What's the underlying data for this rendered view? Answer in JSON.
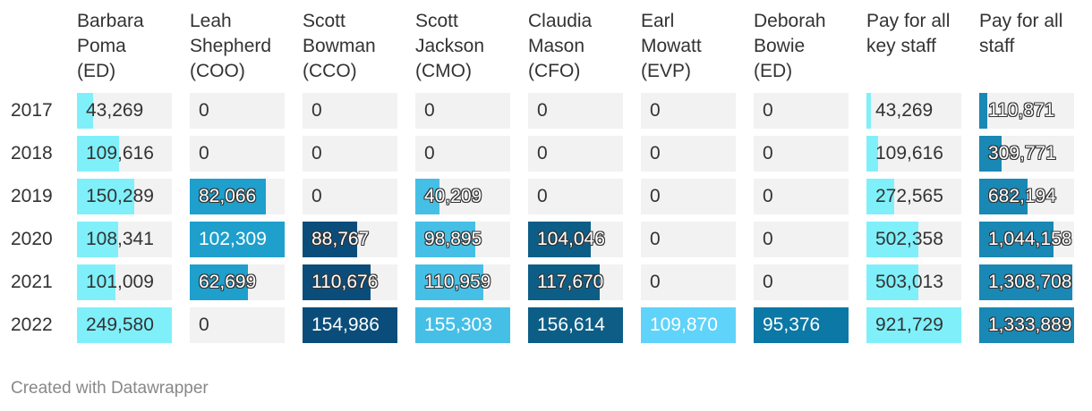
{
  "chart_data": {
    "type": "table",
    "title": "",
    "columns": [
      {
        "name": "Barbara\nPoma\n(ED)",
        "color": "#7ff0fa"
      },
      {
        "name": "Leah\nShepherd\n(COO)",
        "color": "#1e9fcc"
      },
      {
        "name": "Scott\nBowman\n(CCO)",
        "color": "#0b4d7a"
      },
      {
        "name": "Scott\nJackson\n(CMO)",
        "color": "#45bfe6"
      },
      {
        "name": "Claudia\nMason\n(CFO)",
        "color": "#0d5e86"
      },
      {
        "name": "Earl\nMowatt\n(EVP)",
        "color": "#5fd3fa"
      },
      {
        "name": "Deborah\nBowie\n(ED)",
        "color": "#0b78a6"
      },
      {
        "name": "Pay for all\nkey staff",
        "color": "#7ff0fa"
      },
      {
        "name": "Pay for all\nstaff",
        "color": "#1a88b4"
      }
    ],
    "rows": [
      "2017",
      "2018",
      "2019",
      "2020",
      "2021",
      "2022"
    ],
    "values": [
      [
        43269,
        0,
        0,
        0,
        0,
        0,
        0,
        43269,
        110871
      ],
      [
        109616,
        0,
        0,
        0,
        0,
        0,
        0,
        109616,
        309771
      ],
      [
        150289,
        82066,
        0,
        40209,
        0,
        0,
        0,
        272565,
        682194
      ],
      [
        108341,
        102309,
        88767,
        98895,
        104046,
        0,
        0,
        502358,
        1044158
      ],
      [
        101009,
        62699,
        110676,
        110959,
        117670,
        0,
        0,
        503013,
        1308708
      ],
      [
        249580,
        0,
        154986,
        155303,
        156614,
        109870,
        95376,
        921729,
        1333889
      ]
    ],
    "labels": [
      [
        "43,269",
        "0",
        "0",
        "0",
        "0",
        "0",
        "0",
        "43,269",
        "110,871"
      ],
      [
        "109,616",
        "0",
        "0",
        "0",
        "0",
        "0",
        "0",
        "109,616",
        "309,771"
      ],
      [
        "150,289",
        "82,066",
        "0",
        "40,209",
        "0",
        "0",
        "0",
        "272,565",
        "682,194"
      ],
      [
        "108,341",
        "102,309",
        "88,767",
        "98,895",
        "104,046",
        "0",
        "0",
        "502,358",
        "1,044,158"
      ],
      [
        "101,009",
        "62,699",
        "110,676",
        "110,959",
        "117,670",
        "0",
        "0",
        "503,013",
        "1,308,708"
      ],
      [
        "249,580",
        "0",
        "154,986",
        "155,303",
        "156,614",
        "109,870",
        "95,376",
        "921,729",
        "1,333,889"
      ]
    ],
    "label_style": [
      [
        "d",
        "d",
        "d",
        "d",
        "d",
        "d",
        "d",
        "d",
        "o"
      ],
      [
        "d",
        "d",
        "d",
        "d",
        "d",
        "d",
        "d",
        "d",
        "o"
      ],
      [
        "d",
        "o",
        "d",
        "o",
        "d",
        "d",
        "d",
        "d",
        "o"
      ],
      [
        "d",
        "w",
        "o",
        "o",
        "o",
        "d",
        "d",
        "d",
        "o"
      ],
      [
        "d",
        "o",
        "o",
        "o",
        "o",
        "d",
        "d",
        "d",
        "o"
      ],
      [
        "d",
        "d",
        "w",
        "w",
        "w",
        "w",
        "w",
        "d",
        "o"
      ]
    ]
  },
  "footer": "Created with Datawrapper"
}
